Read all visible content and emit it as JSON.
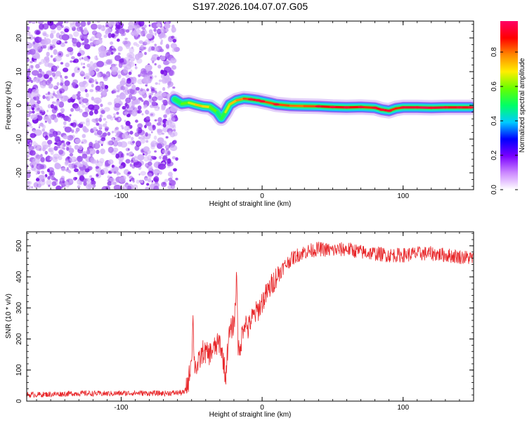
{
  "title": "S197.2026.104.07.07.G05",
  "colorbar": {
    "label": "Normalized spectral amplitude",
    "ticks": [
      "0.0",
      "0.2",
      "0.4",
      "0.6",
      "0.8"
    ],
    "tick_values": [
      0.0,
      0.2,
      0.4,
      0.6,
      0.8
    ],
    "range": [
      0.0,
      0.98
    ],
    "colors": [
      "#ffffff",
      "#cc88ff",
      "#7a00ff",
      "#0000ff",
      "#00ccff",
      "#00ff66",
      "#66ff00",
      "#ffee00",
      "#ff8800",
      "#ff0000",
      "#ff0066"
    ]
  },
  "chart_data": [
    {
      "type": "heatmap",
      "title": "S197.2026.104.07.07.G05",
      "xlabel": "Height of straight line (km)",
      "ylabel": "Frequency (Hz)",
      "xlim": [
        -167,
        150
      ],
      "ylim": [
        -25,
        25
      ],
      "xticks": [
        -100,
        0,
        100
      ],
      "xtick_labels": [
        "-100",
        "0",
        "100"
      ],
      "yticks": [
        -20,
        -10,
        0,
        10,
        20
      ],
      "ytick_labels": [
        "-20",
        "-10",
        "0",
        "10",
        "20"
      ],
      "noise_region_x": [
        -167,
        -62
      ],
      "ridge": {
        "x": [
          -62,
          -57,
          -52,
          -47,
          -42,
          -37,
          -32,
          -29,
          -26,
          -23,
          -18,
          -13,
          -8,
          -3,
          0,
          5,
          10,
          20,
          30,
          40,
          50,
          60,
          70,
          80,
          85,
          90,
          95,
          100,
          110,
          120,
          130,
          140,
          148
        ],
        "frequency": [
          1.8,
          0.5,
          0.8,
          0.2,
          -0.3,
          -0.5,
          -2.0,
          -3.8,
          -2.0,
          0.3,
          1.5,
          2.0,
          1.8,
          1.5,
          1.2,
          0.8,
          0.3,
          -0.1,
          -0.2,
          -0.3,
          -0.5,
          -0.6,
          -0.5,
          -0.7,
          -1.3,
          -1.6,
          -0.9,
          -0.6,
          -0.6,
          -0.7,
          -0.6,
          -0.6,
          -0.6
        ],
        "amplitude": [
          0.45,
          0.55,
          0.6,
          0.7,
          0.75,
          0.65,
          0.5,
          0.45,
          0.6,
          0.7,
          0.75,
          0.8,
          0.85,
          0.9,
          0.85,
          0.8,
          0.85,
          0.8,
          0.8,
          0.85,
          0.9,
          0.9,
          0.85,
          0.85,
          0.9,
          0.9,
          0.8,
          0.9,
          0.95,
          0.95,
          0.9,
          0.9,
          0.9
        ]
      }
    },
    {
      "type": "line",
      "xlabel": "Height of straight line (km)",
      "ylabel": "SNR (10 * v/v)",
      "xlim": [
        -167,
        150
      ],
      "ylim": [
        0,
        545
      ],
      "xticks": [
        -100,
        0,
        100
      ],
      "xtick_labels": [
        "-100",
        "0",
        "100"
      ],
      "yticks": [
        0,
        100,
        200,
        300,
        400,
        500
      ],
      "ytick_labels": [
        "0",
        "100",
        "200",
        "300",
        "400",
        "500"
      ],
      "series": [
        {
          "name": "SNR",
          "color": "#e8282b",
          "x": [
            -167,
            -150,
            -130,
            -110,
            -90,
            -70,
            -55,
            -52,
            -50,
            -49,
            -48,
            -46,
            -42,
            -38,
            -34,
            -30,
            -27,
            -26,
            -24,
            -22,
            -20,
            -19,
            -18,
            -17,
            -16,
            -14,
            -12,
            -10,
            -8,
            -5,
            -2,
            0,
            5,
            10,
            15,
            20,
            25,
            30,
            40,
            50,
            60,
            70,
            80,
            90,
            100,
            110,
            120,
            130,
            140,
            150
          ],
          "values": [
            20,
            22,
            25,
            24,
            26,
            25,
            28,
            70,
            150,
            260,
            120,
            110,
            160,
            150,
            170,
            190,
            120,
            70,
            200,
            230,
            250,
            300,
            420,
            180,
            140,
            230,
            260,
            230,
            260,
            280,
            300,
            320,
            360,
            400,
            430,
            455,
            470,
            480,
            490,
            485,
            490,
            480,
            475,
            470,
            470,
            475,
            475,
            470,
            465,
            460
          ]
        }
      ]
    }
  ]
}
